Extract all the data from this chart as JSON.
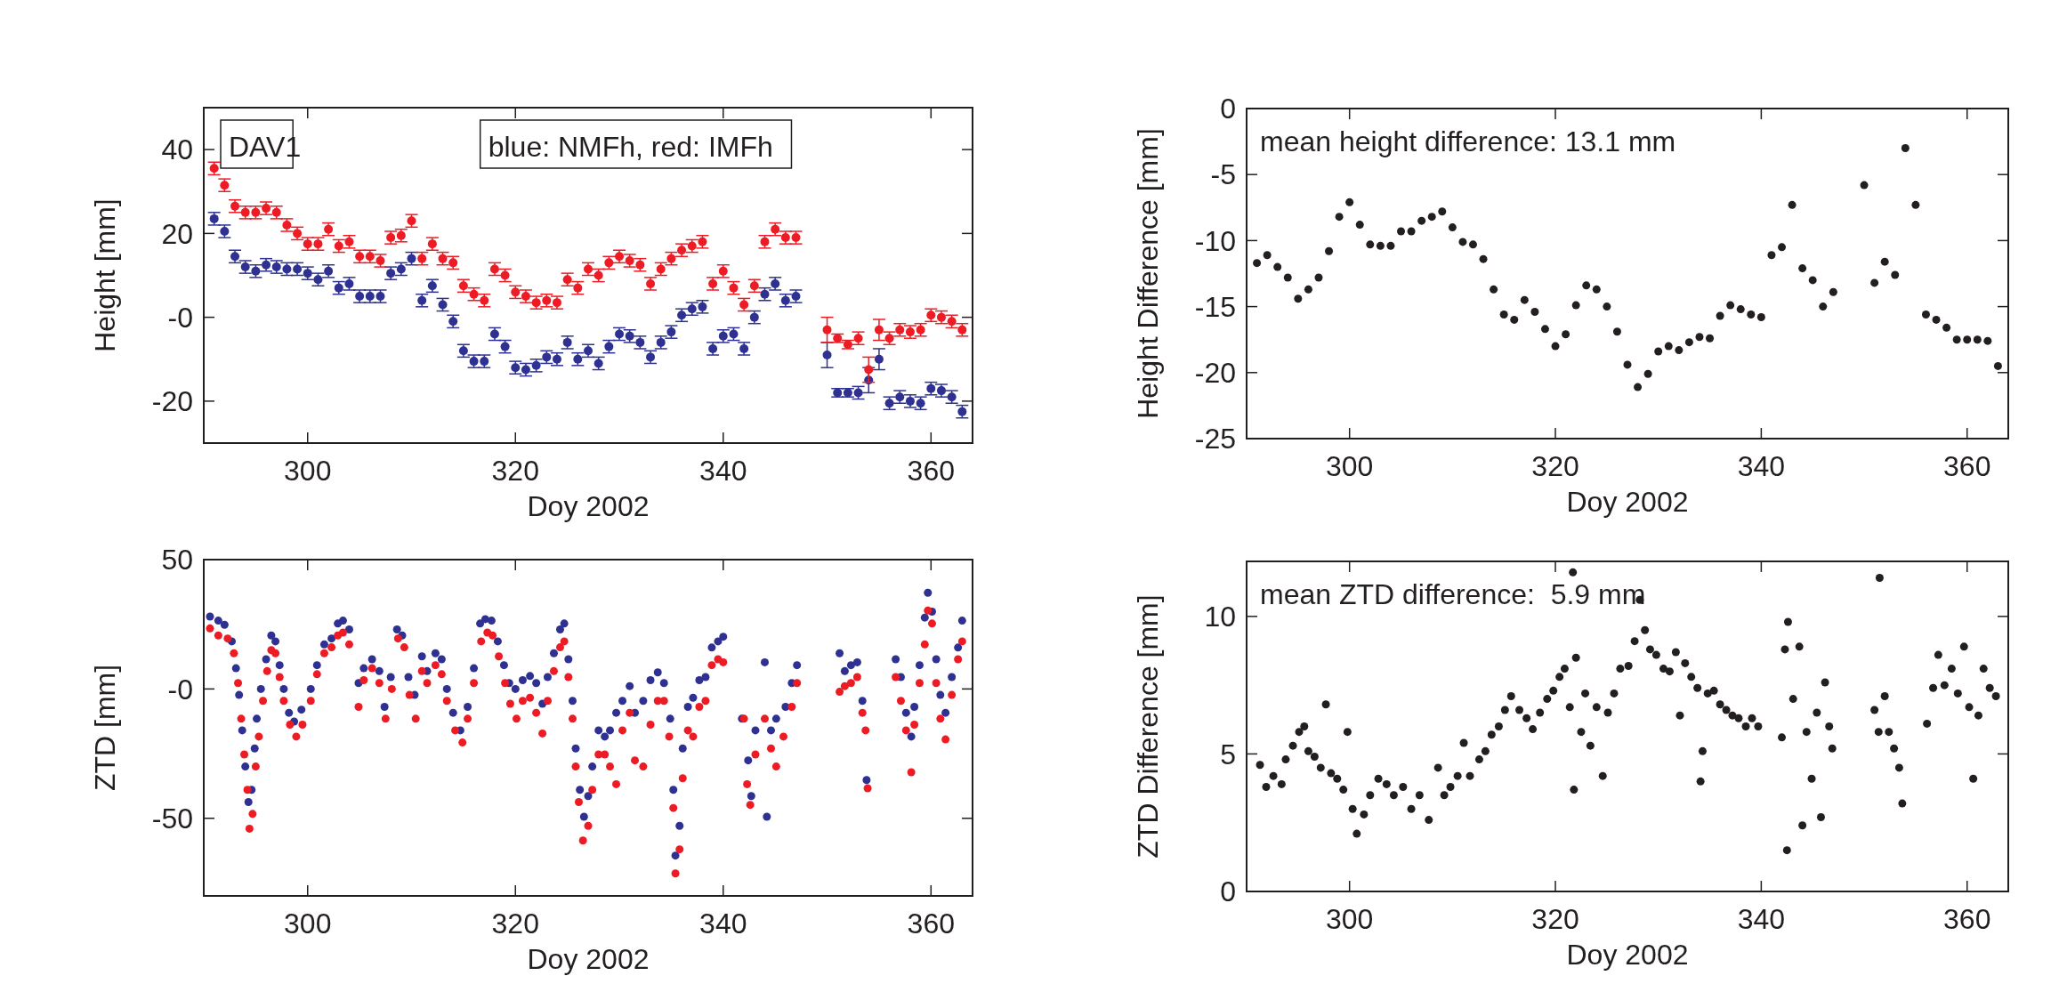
{
  "chart_data": [
    {
      "type": "scatter",
      "xlabel": "Doy 2002",
      "ylabel": "Height [mm]",
      "annotations": [
        "DAV1",
        "blue: NMFh, red: IMFh"
      ],
      "xlim": [
        290,
        364
      ],
      "ylim": [
        -30,
        50
      ],
      "xticks": [
        300,
        320,
        340,
        360
      ],
      "yticks": [
        -20,
        {
          "value": 0,
          "label": "-0"
        },
        20,
        40
      ],
      "grid": false,
      "marker": "circle",
      "x": [
        291,
        292,
        293,
        294,
        295,
        296,
        297,
        298,
        299,
        300,
        301,
        302,
        303,
        304,
        305,
        306,
        307,
        308,
        309,
        310,
        311,
        312,
        313,
        314,
        315,
        316,
        317,
        318,
        319,
        320,
        321,
        322,
        323,
        324,
        325,
        326,
        327,
        328,
        329,
        330,
        331,
        332,
        333,
        334,
        335,
        336,
        337,
        338,
        339,
        340,
        341,
        342,
        343,
        344,
        345,
        346,
        347,
        350,
        351,
        352,
        353,
        354,
        355,
        356,
        357,
        358,
        359,
        360,
        361,
        362,
        363
      ],
      "series": [
        {
          "color": "#2e3192",
          "values": [
            23.5,
            20.5,
            14.5,
            12,
            11,
            12.5,
            12,
            11.5,
            11.5,
            10.5,
            9,
            11,
            7,
            8,
            5,
            5,
            5,
            10.5,
            11.5,
            14,
            4,
            7.5,
            3,
            -1,
            -8,
            -10.5,
            -10.5,
            -4,
            -7,
            -12,
            -12.5,
            -11.5,
            -9.5,
            -10,
            -6,
            -10,
            -8,
            -11,
            -7,
            -4,
            -4.5,
            -6,
            -9.5,
            -6,
            -3.5,
            0.5,
            2,
            2.5,
            -7.5,
            -4.5,
            -4,
            -7.5,
            0,
            5.5,
            8,
            4,
            5,
            -9,
            -18,
            -18,
            -18,
            -15,
            -10,
            -20.5,
            -19,
            -20,
            -20.5,
            -17,
            -17.5,
            -19,
            -22.5
          ],
          "errors": [
            1.5,
            1.5,
            1.5,
            1.5,
            1.5,
            1.5,
            1.5,
            1.5,
            1.5,
            1.5,
            1.5,
            1.5,
            1.5,
            1.5,
            1.5,
            1.5,
            1.5,
            1.5,
            1.5,
            1.5,
            1.5,
            1.5,
            1.5,
            1.5,
            1.5,
            1.5,
            1.5,
            1.5,
            1.5,
            1.5,
            1.5,
            1.5,
            1.5,
            1.5,
            1.5,
            1.5,
            1.5,
            1.5,
            1.5,
            1.5,
            1.5,
            1.5,
            1.5,
            1.5,
            1.5,
            1.5,
            1.5,
            1.5,
            1.5,
            1.5,
            1.5,
            1.5,
            1.5,
            1.5,
            1.5,
            1.5,
            1.5,
            3,
            1,
            1,
            1.5,
            3,
            2.5,
            1.5,
            1.5,
            1.5,
            1.5,
            1.5,
            1.5,
            1.5,
            1.5
          ]
        },
        {
          "color": "#ed1c24",
          "values": [
            35.5,
            31.5,
            26.5,
            25,
            25,
            26,
            25,
            22,
            20,
            17.5,
            17.5,
            21,
            17,
            18,
            14.5,
            14.5,
            13.5,
            19,
            19.5,
            23,
            14,
            17.5,
            14,
            13,
            7.5,
            5.5,
            4,
            11.5,
            10,
            6,
            5,
            3.5,
            4,
            3.5,
            9,
            7,
            11.5,
            10,
            13,
            14.5,
            13.5,
            12.5,
            8,
            11.5,
            14,
            16,
            17,
            18,
            8,
            11,
            7,
            3,
            7.5,
            18,
            21,
            19,
            19,
            -3,
            -5,
            -6.5,
            -5,
            -12.5,
            -3,
            -5,
            -3,
            -3.5,
            -3,
            0.5,
            0,
            -1,
            -3
          ],
          "errors": [
            1.5,
            1.5,
            1.5,
            1.5,
            1.5,
            1.5,
            1.5,
            1.5,
            1.5,
            1.5,
            1.5,
            1.5,
            1.5,
            1.5,
            1.5,
            1.5,
            1.5,
            1.5,
            1.5,
            1.5,
            1.5,
            1.5,
            1.5,
            1.5,
            1.5,
            1.5,
            1.5,
            1.5,
            1.5,
            1.5,
            1.5,
            1.5,
            1.5,
            1.5,
            1.5,
            1.5,
            1.5,
            1.5,
            1.5,
            1.5,
            1.5,
            1.5,
            1.5,
            1.5,
            1.5,
            1.5,
            1.5,
            1.5,
            1.5,
            1.5,
            1.5,
            1.5,
            1.5,
            1.5,
            1.5,
            1.5,
            1.5,
            3,
            1,
            1,
            1.5,
            3,
            2.5,
            1.5,
            1.5,
            1.5,
            1.5,
            1.5,
            1.5,
            1.5,
            1.5
          ]
        }
      ]
    },
    {
      "type": "scatter",
      "xlabel": "Doy 2002",
      "ylabel": "Height Difference [mm]",
      "annotations": [
        "mean height difference: 13.1 mm"
      ],
      "xlim": [
        290,
        364
      ],
      "ylim": [
        -25,
        0
      ],
      "xticks": [
        300,
        320,
        340,
        360
      ],
      "yticks": [
        -25,
        -20,
        -15,
        -10,
        -5,
        0
      ],
      "grid": false,
      "marker": "circle",
      "x": [
        291,
        292,
        293,
        294,
        295,
        296,
        297,
        298,
        299,
        300,
        301,
        302,
        303,
        304,
        305,
        306,
        307,
        308,
        309,
        310,
        311,
        312,
        313,
        314,
        315,
        316,
        317,
        318,
        319,
        320,
        321,
        322,
        323,
        324,
        325,
        326,
        327,
        328,
        329,
        330,
        331,
        332,
        333,
        334,
        335,
        336,
        337,
        338,
        339,
        340,
        341,
        342,
        343,
        344,
        345,
        346,
        347,
        350,
        351,
        352,
        353,
        354,
        355,
        356,
        357,
        358,
        359,
        360,
        361,
        362,
        363
      ],
      "series": [
        {
          "color": "#231f20",
          "values": [
            -11.7,
            -11.1,
            -12,
            -12.8,
            -14.4,
            -13.7,
            -12.8,
            -10.8,
            -8.2,
            -7.1,
            -8.8,
            -10.3,
            -10.4,
            -10.4,
            -9.3,
            -9.3,
            -8.5,
            -8.2,
            -7.8,
            -9,
            -10.1,
            -10.3,
            -11.4,
            -13.7,
            -15.6,
            -16,
            -14.5,
            -15.4,
            -16.7,
            -18,
            -17.1,
            -14.9,
            -13.4,
            -13.7,
            -15,
            -16.9,
            -19.4,
            -21.1,
            -20.1,
            -18.4,
            -18,
            -18.3,
            -17.7,
            -17.3,
            -17.4,
            -15.7,
            -14.9,
            -15.2,
            -15.6,
            -15.8,
            -11.1,
            -10.5,
            -7.3,
            -12.1,
            -13,
            -15,
            -13.9,
            -5.8,
            -13.2,
            -11.6,
            -12.6,
            -3,
            -7.3,
            -15.6,
            -16,
            -16.6,
            -17.5,
            -17.5,
            -17.5,
            -17.6,
            -19.5
          ]
        }
      ]
    },
    {
      "type": "scatter",
      "xlabel": "Doy 2002",
      "ylabel": "ZTD [mm]",
      "xlim": [
        290,
        364
      ],
      "ylim": [
        -80,
        50
      ],
      "xticks": [
        300,
        320,
        340,
        360
      ],
      "yticks": [
        -50,
        {
          "value": 0,
          "label": "-0"
        },
        50
      ],
      "grid": false,
      "marker": "circle",
      "series": [
        {
          "color": "#2e3192",
          "x": [
            290.6,
            291.4,
            292,
            292.7,
            293.1,
            293.4,
            293.7,
            294,
            294.3,
            294.6,
            294.9,
            295.1,
            295.5,
            296,
            296.5,
            296.9,
            297.3,
            297.7,
            298.2,
            298.7,
            299.4,
            300.3,
            300.9,
            301.6,
            302.3,
            302.9,
            303.4,
            304,
            304.9,
            305.4,
            306.2,
            306.9,
            307.4,
            308,
            308.6,
            309.1,
            309.7,
            310.3,
            311,
            311.5,
            312.3,
            312.9,
            313.4,
            314,
            314.7,
            315.4,
            316,
            316.6,
            317.1,
            317.7,
            318.3,
            318.9,
            319.4,
            320,
            320.7,
            321.4,
            322,
            322.6,
            323.1,
            323.7,
            324.3,
            324.7,
            325.1,
            325.5,
            325.8,
            326.2,
            326.6,
            327,
            327.4,
            328,
            328.6,
            329.1,
            329.7,
            330.3,
            331,
            331.5,
            332.3,
            333,
            333.7,
            334.3,
            334.9,
            335.2,
            335.4,
            335.8,
            336.1,
            336.6,
            337.1,
            337.7,
            338.3,
            338.9,
            339.5,
            340,
            341.8,
            342.4,
            342.7,
            343.1,
            344,
            344.2,
            344.6,
            345.1,
            346,
            346.6,
            347.1,
            351.2,
            351.7,
            352.3,
            352.9,
            353.4,
            353.8,
            356.6,
            357.1,
            357.6,
            358.1,
            358.4,
            358.9,
            359.4,
            359.7,
            360.1,
            360.5,
            360.9,
            361.4,
            362,
            362.6,
            363
          ],
          "values": [
            28,
            26.4,
            24.8,
            18.4,
            8,
            -2.3,
            -16,
            -30,
            -43.7,
            -39,
            -23,
            -11.5,
            0,
            11.5,
            20.7,
            18.4,
            9.2,
            0,
            -9.2,
            -12.6,
            -8,
            0,
            9.2,
            17.2,
            19.5,
            25.3,
            26.4,
            23,
            2.3,
            8,
            11.5,
            6.9,
            -6.9,
            4.6,
            23,
            20.7,
            4.6,
            -2.3,
            12.6,
            6.9,
            13.8,
            11.5,
            0,
            -9.2,
            -16,
            -6.9,
            8,
            25.3,
            27,
            26.4,
            18.4,
            9.2,
            2.3,
            0,
            3.4,
            5,
            2.3,
            -5.7,
            4.6,
            13.8,
            23,
            25.3,
            11.5,
            -4.6,
            -23,
            -39,
            -49.4,
            -41.4,
            -30,
            -16,
            -18.4,
            -16,
            -9.2,
            -4.6,
            1.1,
            -9.2,
            -4.6,
            3.4,
            6.4,
            2.3,
            -11.5,
            -39,
            -64.4,
            -52.9,
            -23,
            -6.9,
            -3.4,
            3.4,
            4.6,
            16,
            18.4,
            20.2,
            -11.5,
            -27.6,
            -41.4,
            -16,
            10.3,
            -49.4,
            -16,
            -11.5,
            -6.9,
            2.3,
            9.2,
            13.8,
            6.9,
            9.2,
            10.3,
            -4.6,
            -35.2,
            11.5,
            4.6,
            -9.2,
            -18.4,
            -6.9,
            9.2,
            27.6,
            37.2,
            29.9,
            11.5,
            -2.3,
            -9.2,
            4.6,
            16,
            26.4
          ]
        },
        {
          "color": "#ed1c24",
          "x": [
            290.6,
            291.4,
            292.3,
            292.9,
            293.3,
            293.6,
            293.9,
            294.2,
            294.4,
            294.7,
            295,
            295.3,
            295.7,
            296.1,
            296.5,
            296.9,
            297.3,
            297.7,
            298.3,
            298.9,
            299.5,
            300.3,
            300.9,
            301.6,
            302.3,
            302.9,
            303.4,
            304,
            304.9,
            305.4,
            306.2,
            306.9,
            307.5,
            308.1,
            308.7,
            309.3,
            309.8,
            310.4,
            311,
            311.5,
            312.3,
            312.9,
            313.4,
            314.2,
            314.9,
            315.4,
            316,
            316.7,
            317.3,
            317.8,
            318.4,
            319,
            319.5,
            320.1,
            320.7,
            321.4,
            322,
            322.6,
            323.1,
            323.7,
            324.3,
            324.7,
            325.1,
            325.5,
            325.8,
            326.1,
            326.5,
            327,
            327.4,
            328,
            328.6,
            329.1,
            329.7,
            330.3,
            331,
            331.5,
            332.3,
            333,
            333.7,
            334.3,
            334.8,
            335.2,
            335.4,
            335.8,
            336.1,
            336.6,
            337.1,
            337.7,
            338.3,
            338.9,
            339.5,
            340,
            342,
            342.3,
            342.6,
            343.1,
            344,
            344.6,
            345.1,
            345.8,
            346.6,
            347.1,
            351.2,
            351.7,
            352.3,
            352.9,
            353.4,
            353.7,
            353.9,
            356.6,
            357.1,
            357.6,
            358.1,
            358.4,
            358.9,
            359.4,
            359.7,
            360.1,
            360.5,
            360.9,
            361.4,
            362,
            362.6,
            363
          ],
          "values": [
            23.4,
            20.7,
            19.5,
            13.8,
            2.3,
            -11.5,
            -25.3,
            -39,
            -54,
            -48.3,
            -30,
            -18.4,
            -4.6,
            6.9,
            15,
            13.8,
            4.6,
            -4.6,
            -13.8,
            -18.4,
            -13.8,
            -4.6,
            5.7,
            13.8,
            16.1,
            20.7,
            21.8,
            17.2,
            -6.9,
            3.4,
            8,
            2.3,
            -11.5,
            0,
            19.5,
            16.1,
            -2.3,
            -11.5,
            6.9,
            2.3,
            9.2,
            5.7,
            -4.6,
            -16,
            -20.7,
            -11.5,
            2.3,
            18.4,
            21.8,
            20.7,
            12.6,
            2.3,
            -5.7,
            -11.5,
            -4.6,
            -3.4,
            -9.2,
            -17.2,
            -4.6,
            6.9,
            16.1,
            18.4,
            4.6,
            -11.5,
            -30,
            -43.7,
            -58.6,
            -52.9,
            -39,
            -25.3,
            -25.3,
            -30,
            -36.8,
            -16,
            -9.2,
            -27.6,
            -30,
            -13.8,
            -4.6,
            -4.6,
            -18.4,
            -46,
            -71.3,
            -62,
            -34.5,
            -16,
            -18.4,
            -6.9,
            -4.6,
            9.2,
            11.5,
            10.3,
            -11.5,
            -36.8,
            -44.8,
            -25.3,
            -11.5,
            -23,
            -30,
            -18.4,
            -6.9,
            2.3,
            -1.1,
            1.1,
            2.3,
            4.6,
            -9.2,
            -16,
            -38.4,
            4.6,
            -4.6,
            -16,
            -32.2,
            -13.8,
            2.3,
            17.2,
            30.3,
            25.3,
            2.3,
            -11.5,
            -19.5,
            -2.3,
            11.5,
            18.4
          ]
        }
      ]
    },
    {
      "type": "scatter",
      "xlabel": "Doy 2002",
      "ylabel": "ZTD Difference [mm]",
      "annotations": [
        "mean ZTD difference:  5.9 mm"
      ],
      "xlim": [
        290,
        364
      ],
      "ylim": [
        0,
        12
      ],
      "xticks": [
        300,
        320,
        340,
        360
      ],
      "yticks": [
        0,
        5,
        10
      ],
      "grid": false,
      "marker": "circle",
      "series": [
        {
          "color": "#231f20",
          "x": [
            291.3,
            291.9,
            292.6,
            293.4,
            293.8,
            294.5,
            295.1,
            295.6,
            296,
            296.6,
            297.2,
            297.7,
            298.2,
            298.8,
            299.4,
            299.8,
            300.3,
            300.7,
            301.4,
            302,
            302.8,
            303.6,
            304.3,
            305.2,
            306,
            306.8,
            307.7,
            308.6,
            309.2,
            309.8,
            310.5,
            311.1,
            311.7,
            312.6,
            313.2,
            313.8,
            314.5,
            315.1,
            315.7,
            316.5,
            317.2,
            317.8,
            318.5,
            319.2,
            319.8,
            320.4,
            320.9,
            321.4,
            321.7,
            321.8,
            322,
            322.5,
            322.9,
            323.4,
            324,
            324.6,
            325.1,
            325.7,
            326.3,
            327.1,
            327.7,
            328.2,
            328.7,
            329.2,
            329.8,
            330.5,
            331.1,
            331.7,
            332.1,
            332.6,
            333.2,
            333.8,
            334.1,
            334.3,
            334.8,
            335.4,
            336,
            336.6,
            337.2,
            337.8,
            338.5,
            339.1,
            339.7,
            342,
            342.3,
            342.5,
            342.6,
            343.1,
            343.7,
            344,
            344.4,
            344.9,
            345.4,
            345.8,
            346.2,
            346.6,
            346.9,
            351,
            351.4,
            351.5,
            352,
            352.4,
            352.9,
            353.4,
            353.7,
            356.1,
            356.7,
            357.2,
            357.8,
            358.5,
            359.1,
            359.7,
            360.2,
            360.6,
            361.1,
            361.6,
            362.2,
            362.8
          ],
          "values": [
            4.6,
            3.8,
            4.2,
            3.9,
            4.8,
            5.3,
            5.8,
            6,
            5.1,
            4.9,
            4.5,
            6.8,
            4.3,
            4.1,
            3.7,
            5.8,
            3,
            2.1,
            2.8,
            3.5,
            4.1,
            3.9,
            3.5,
            3.8,
            3,
            3.5,
            2.6,
            4.5,
            3.5,
            3.8,
            4.2,
            5.4,
            4.2,
            4.8,
            5.1,
            5.7,
            6,
            6.6,
            7.1,
            6.6,
            6.3,
            5.9,
            6.5,
            7,
            7.3,
            7.8,
            8.1,
            6.7,
            11.6,
            3.7,
            8.5,
            5.8,
            7.2,
            5.3,
            6.7,
            4.2,
            6.5,
            7.2,
            8.1,
            8.2,
            9.1,
            10.6,
            9.5,
            8.8,
            8.6,
            8.1,
            8,
            8.7,
            6.4,
            8.3,
            7.8,
            7.4,
            4,
            5.1,
            7.2,
            7.3,
            6.8,
            6.6,
            6.4,
            6.3,
            6,
            6.3,
            6,
            5.6,
            8.8,
            1.5,
            9.8,
            7,
            8.9,
            2.4,
            5.8,
            4.1,
            6.5,
            2.7,
            7.6,
            6,
            5.2,
            6.6,
            5.8,
            11.4,
            7.1,
            5.8,
            5.2,
            4.5,
            3.2,
            6.1,
            7.4,
            8.6,
            7.5,
            8.1,
            7.2,
            8.9,
            6.7,
            4.1,
            6.4,
            8.1,
            7.4,
            7.1
          ]
        }
      ]
    }
  ]
}
